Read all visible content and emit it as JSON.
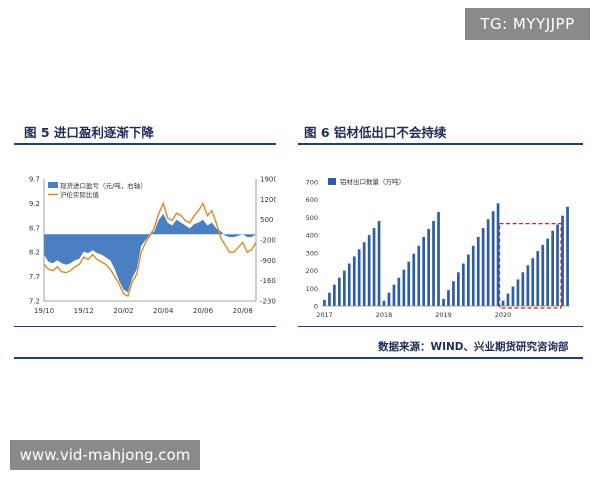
{
  "watermarks": {
    "tag": "TG: MYYJJPP",
    "url": "www.vid-mahjong.com"
  },
  "source": "数据来源：WIND、兴业期货研究咨询部",
  "colors": {
    "navy": "#1f3f79",
    "bar_blue": "#2e5da8",
    "area_blue": "#4a7fc1",
    "orange": "#d98a2b",
    "dash_red": "#c0282f"
  },
  "chart_data": [
    {
      "id": "fig5",
      "type": "area",
      "title": "图 5 进口盈利逐渐下降",
      "x_tick_labels": [
        "19/10",
        "19/12",
        "20/02",
        "20/04",
        "20/06",
        "20/08"
      ],
      "x_tick_index": [
        0,
        9,
        18,
        27,
        36,
        45
      ],
      "left_ylim": [
        7.2,
        9.7
      ],
      "left_yticks": [
        "9.7",
        "9.2",
        "8.7",
        "8.2",
        "7.7",
        "7.2"
      ],
      "right_ylim": [
        -2300,
        1900
      ],
      "right_yticks": [
        "1900",
        "1200",
        "500",
        "-200",
        "-900",
        "-1600",
        "-2300"
      ],
      "grid": false,
      "legend_position": "top-left",
      "series": [
        {
          "name": "现货进口盈亏（元/吨，右轴）",
          "axis": "right",
          "kind": "area",
          "values": [
            -700,
            -950,
            -1000,
            -900,
            -1000,
            -1050,
            -1000,
            -900,
            -850,
            -600,
            -650,
            -550,
            -650,
            -700,
            -800,
            -900,
            -1200,
            -1600,
            -1900,
            -2000,
            -1500,
            -1200,
            -400,
            -200,
            0,
            100,
            500,
            700,
            400,
            300,
            500,
            400,
            300,
            200,
            350,
            400,
            500,
            300,
            400,
            200,
            100,
            -50,
            -100,
            -100,
            -50,
            0,
            -100,
            -100,
            0
          ]
        },
        {
          "name": "沪伦实际比值",
          "axis": "left",
          "kind": "line",
          "values": [
            7.95,
            7.85,
            7.82,
            7.9,
            7.8,
            7.78,
            7.82,
            7.9,
            7.95,
            8.1,
            8.05,
            8.15,
            8.05,
            8.0,
            7.95,
            7.85,
            7.7,
            7.55,
            7.35,
            7.3,
            7.6,
            7.75,
            8.2,
            8.4,
            8.55,
            8.7,
            9.0,
            9.2,
            8.9,
            8.85,
            9.0,
            8.95,
            8.85,
            8.8,
            8.95,
            9.05,
            9.2,
            8.95,
            9.05,
            8.8,
            8.5,
            8.35,
            8.2,
            8.2,
            8.3,
            8.4,
            8.2,
            8.25,
            8.4
          ]
        }
      ]
    },
    {
      "id": "fig6",
      "type": "bar",
      "title": "图 6 铝材低出口不会持续",
      "legend": "铝材出口数量（万吨）",
      "ylim": [
        0,
        700
      ],
      "yticks": [
        "700",
        "600",
        "500",
        "400",
        "300",
        "200",
        "100",
        "0"
      ],
      "x_tick_labels": [
        "2017",
        "2018",
        "2019",
        "2020"
      ],
      "x_tick_index": [
        0,
        12,
        24,
        36
      ],
      "grid": false,
      "highlight": {
        "label": "",
        "from_index": 36,
        "to_index": 47
      },
      "series": [
        {
          "name": "铝材出口数量（万吨）",
          "values": [
            35,
            75,
            120,
            160,
            200,
            240,
            280,
            320,
            360,
            400,
            440,
            480,
            30,
            75,
            120,
            160,
            205,
            250,
            295,
            340,
            390,
            435,
            480,
            530,
            40,
            90,
            140,
            190,
            240,
            290,
            340,
            390,
            440,
            490,
            535,
            580,
            30,
            70,
            110,
            150,
            190,
            230,
            270,
            310,
            345,
            380,
            425,
            460,
            510,
            560
          ]
        }
      ]
    }
  ]
}
